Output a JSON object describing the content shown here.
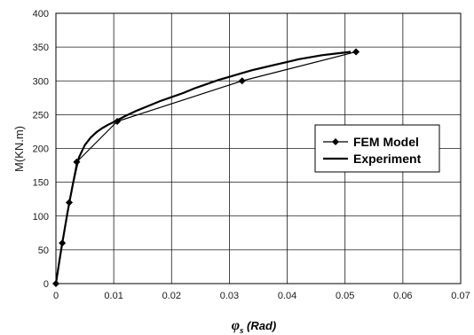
{
  "chart_data": {
    "type": "line",
    "title": "",
    "xlabel": {
      "symbol": "φ",
      "subscript": "s",
      "unit": " (Rad)"
    },
    "ylabel": "M(KN.m)",
    "xlim": [
      0,
      0.07
    ],
    "ylim": [
      0,
      400
    ],
    "xticks": [
      0,
      0.01,
      0.02,
      0.03,
      0.04,
      0.05,
      0.06,
      0.07
    ],
    "xtick_labels": [
      "0",
      "0.01",
      "0.02",
      "0.03",
      "0.04",
      "0.05",
      "0.06",
      "0.07"
    ],
    "yticks": [
      0,
      50,
      100,
      150,
      200,
      250,
      300,
      350,
      400
    ],
    "ytick_labels": [
      "0",
      "50",
      "100",
      "150",
      "200",
      "250",
      "300",
      "350",
      "400"
    ],
    "grid": true,
    "legend_position": "right",
    "series": [
      {
        "name": "FEM Model",
        "marker": "diamond",
        "color": "#000000",
        "x": [
          0,
          0.0011,
          0.0023,
          0.0036,
          0.0106,
          0.0322,
          0.0519
        ],
        "y": [
          0,
          60,
          120,
          180,
          240,
          300,
          343
        ]
      },
      {
        "name": "Experiment",
        "marker": "none",
        "color": "#000000",
        "x": [
          0,
          0.0005,
          0.001,
          0.0015,
          0.002,
          0.0025,
          0.003,
          0.0035,
          0.004,
          0.005,
          0.006,
          0.007,
          0.008,
          0.009,
          0.01,
          0.012,
          0.014,
          0.016,
          0.018,
          0.02,
          0.022,
          0.024,
          0.026,
          0.028,
          0.03,
          0.032,
          0.034,
          0.036,
          0.038,
          0.04,
          0.042,
          0.044,
          0.046,
          0.048,
          0.05,
          0.051
        ],
        "y": [
          0,
          28,
          55,
          80,
          105,
          128,
          150,
          170,
          187,
          205,
          216,
          224,
          230,
          235,
          239,
          248,
          256,
          263,
          270,
          276,
          282,
          289,
          295,
          301,
          306,
          311,
          316,
          320,
          324,
          328,
          332,
          335,
          338,
          340,
          342,
          343
        ]
      }
    ]
  }
}
